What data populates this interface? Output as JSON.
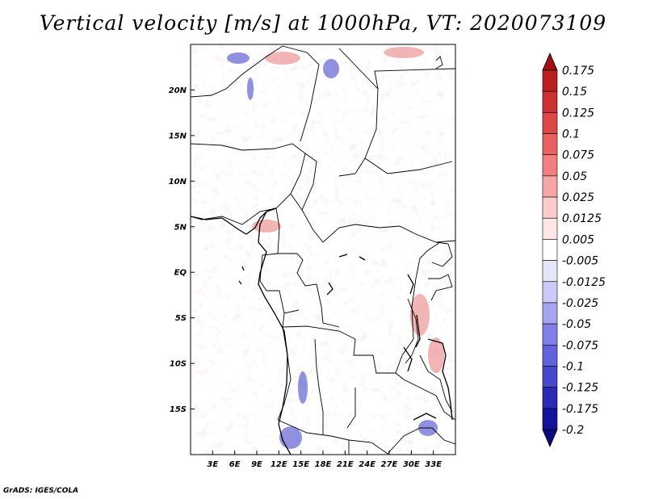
{
  "title": "Vertical velocity [m/s] at 1000hPa, VT: 2020073109",
  "credit": "GrADS: IGES/COLA",
  "map": {
    "lon_range": [
      0,
      36
    ],
    "lat_range": [
      -20,
      25
    ],
    "lat_labels": [
      "20N",
      "15N",
      "10N",
      "5N",
      "EQ",
      "5S",
      "10S",
      "15S"
    ],
    "lat_values": [
      20,
      15,
      10,
      5,
      0,
      -5,
      -10,
      -15
    ],
    "lon_labels": [
      "3E",
      "6E",
      "9E",
      "12E",
      "15E",
      "18E",
      "21E",
      "24E",
      "27E",
      "30E",
      "33E"
    ],
    "lon_values": [
      3,
      6,
      9,
      12,
      15,
      18,
      21,
      24,
      27,
      30,
      33
    ]
  },
  "colorbar": {
    "labels": [
      "0.175",
      "0.15",
      "0.125",
      "0.1",
      "0.075",
      "0.05",
      "0.025",
      "0.0125",
      "0.005",
      "-0.005",
      "-0.0125",
      "-0.025",
      "-0.05",
      "-0.075",
      "-0.1",
      "-0.125",
      "-0.175",
      "-0.2"
    ],
    "colors": [
      "#a01010",
      "#b82020",
      "#cc3030",
      "#dc4848",
      "#e86262",
      "#f08080",
      "#f6a6a6",
      "#fbcaca",
      "#fde6e6",
      "#ffffff",
      "#e6e6fb",
      "#cacaf6",
      "#a6a6f0",
      "#8080e8",
      "#6262dc",
      "#4848cc",
      "#2a2ab4",
      "#14149a",
      "#0a0a80"
    ]
  }
}
